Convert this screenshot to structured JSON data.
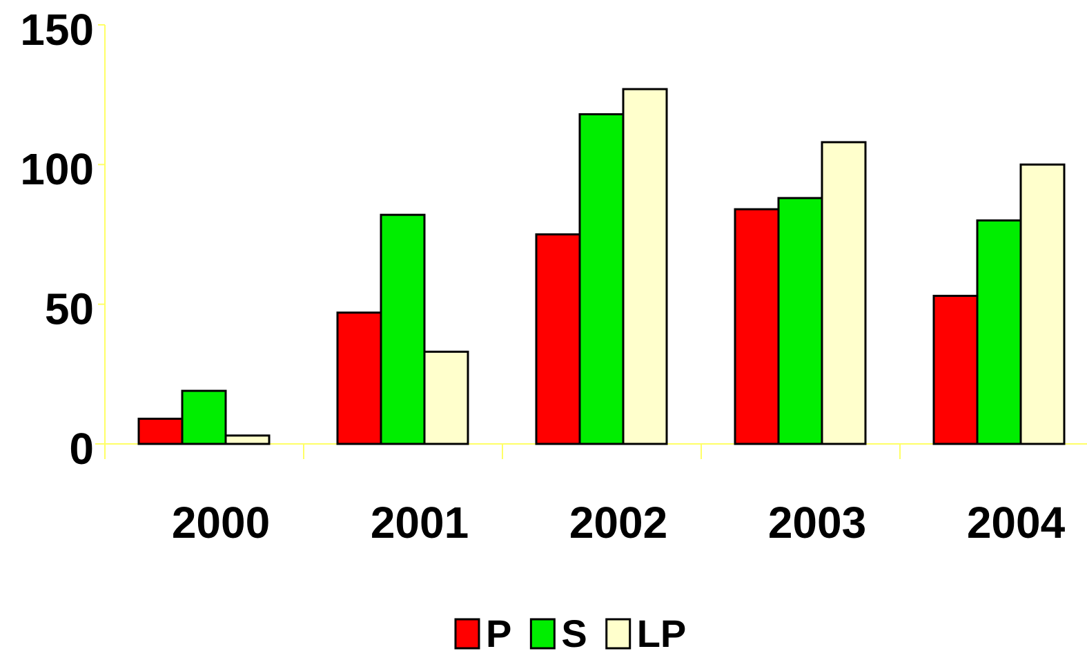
{
  "chart_data": {
    "type": "bar",
    "categories": [
      "2000",
      "2001",
      "2002",
      "2003",
      "2004"
    ],
    "series": [
      {
        "name": "P",
        "color": "#ff0000",
        "values": [
          9,
          47,
          75,
          84,
          53
        ]
      },
      {
        "name": "S",
        "color": "#00ee00",
        "values": [
          19,
          82,
          118,
          88,
          80
        ]
      },
      {
        "name": "LP",
        "color": "#ffffcc",
        "values": [
          3,
          33,
          127,
          108,
          100
        ]
      }
    ],
    "ylim": [
      0,
      150
    ],
    "yticks": [
      0,
      50,
      100,
      150
    ],
    "axis_color": "#ffff66",
    "legend": "bottom"
  }
}
